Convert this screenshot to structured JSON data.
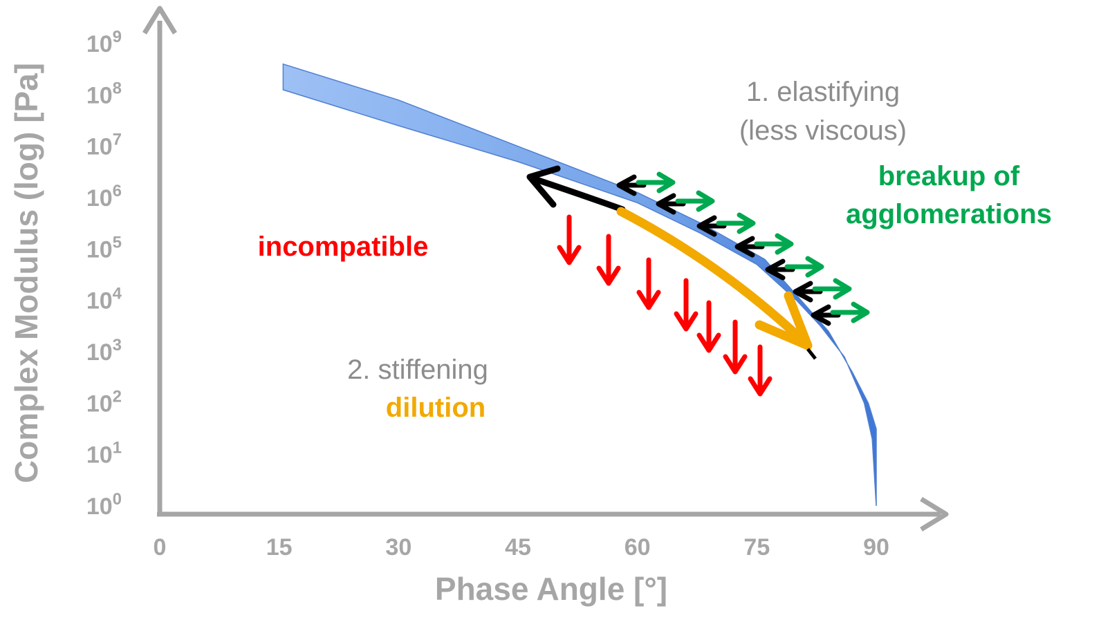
{
  "chart_data": {
    "type": "area",
    "xlabel": "Phase Angle [°]",
    "ylabel": "Complex Modulus (log) [Pa]",
    "x_ticks": [
      "0",
      "15",
      "30",
      "45",
      "60",
      "75",
      "90"
    ],
    "y_ticks": [
      {
        "base": "10",
        "exp": "0"
      },
      {
        "base": "10",
        "exp": "1"
      },
      {
        "base": "10",
        "exp": "2"
      },
      {
        "base": "10",
        "exp": "3"
      },
      {
        "base": "10",
        "exp": "4"
      },
      {
        "base": "10",
        "exp": "5"
      },
      {
        "base": "10",
        "exp": "6"
      },
      {
        "base": "10",
        "exp": "7"
      },
      {
        "base": "10",
        "exp": "8"
      },
      {
        "base": "10",
        "exp": "9"
      }
    ],
    "xlim": [
      0,
      90
    ],
    "ylim_log10": [
      0,
      9
    ],
    "band": {
      "color": "#6fa0e8",
      "upper": [
        [
          15.5,
          8.6
        ],
        [
          30,
          7.9
        ],
        [
          45,
          7.0
        ],
        [
          60,
          6.1
        ],
        [
          68,
          5.5
        ],
        [
          76,
          4.8
        ],
        [
          80,
          4.1
        ],
        [
          84,
          3.4
        ],
        [
          87,
          2.6
        ],
        [
          89,
          2.0
        ],
        [
          90,
          1.5
        ]
      ],
      "lower": [
        [
          90,
          0.0
        ],
        [
          89.5,
          1.3
        ],
        [
          88.5,
          2.0
        ],
        [
          86,
          2.9
        ],
        [
          83,
          3.5
        ],
        [
          80,
          4.0
        ],
        [
          75,
          4.7
        ],
        [
          68,
          5.3
        ],
        [
          60,
          5.9
        ],
        [
          45,
          6.7
        ],
        [
          30,
          7.4
        ],
        [
          15.5,
          8.1
        ]
      ]
    },
    "annotations": {
      "elastifying_line1": "1. elastifying",
      "elastifying_line2": "(less viscous)",
      "breakup_line1": "breakup of",
      "breakup_line2": "agglomerations",
      "incompatible": "incompatible",
      "stiffening": "2. stiffening",
      "dilution": "dilution"
    },
    "colors": {
      "axis": "#a6a6a6",
      "band": "#6fa0e8",
      "band_edge": "#4f7fcf",
      "incompatible": "#ff0000",
      "breakup": "#00a84f",
      "dilution": "#f2a900",
      "elastify_arrow": "#000000",
      "annotation_gray": "#8c8c8c"
    }
  }
}
